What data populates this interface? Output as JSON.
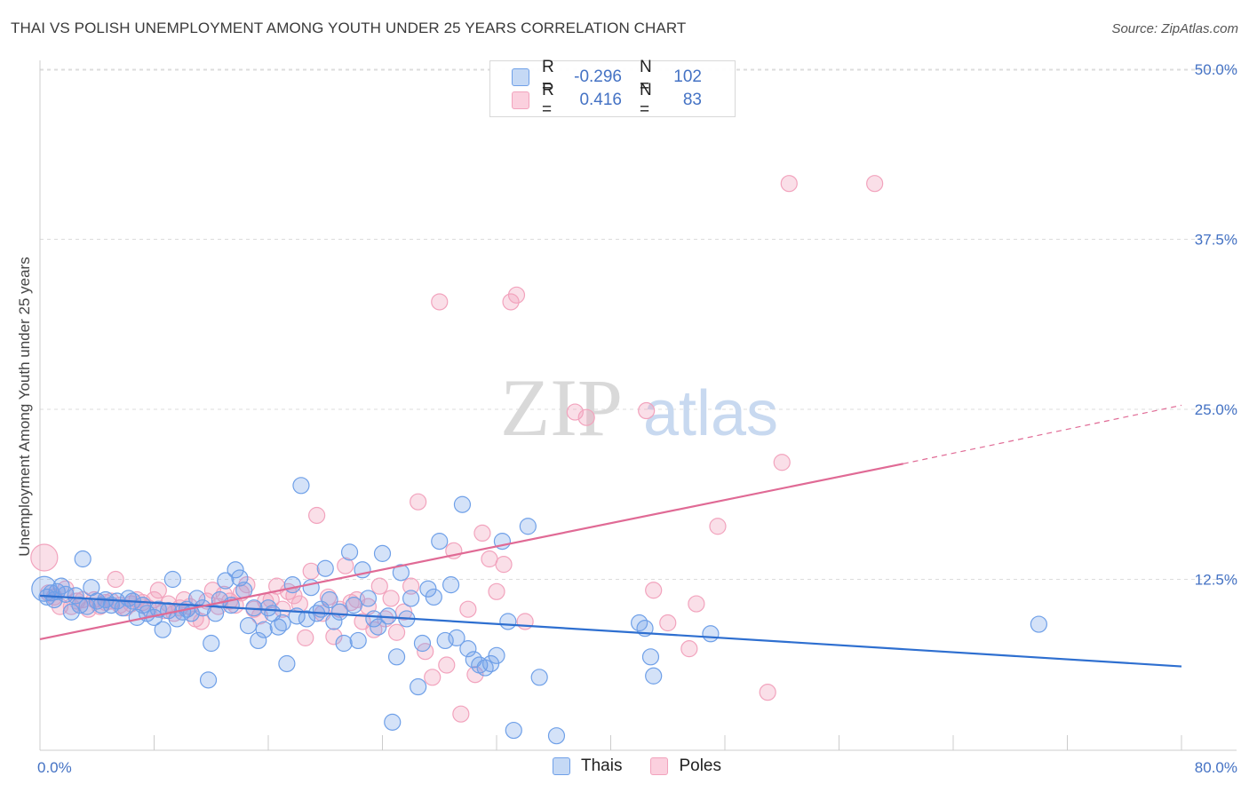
{
  "title": "THAI VS POLISH UNEMPLOYMENT AMONG YOUTH UNDER 25 YEARS CORRELATION CHART",
  "source": "Source: ZipAtlas.com",
  "watermark": {
    "zip": "ZIP",
    "atlas": "atlas"
  },
  "legend": {
    "r_label": "R =",
    "n_label": "N =",
    "thais": {
      "r": "-0.296",
      "n": "102"
    },
    "poles": {
      "r": "0.416",
      "n": "83"
    }
  },
  "chart_data": {
    "type": "scatter",
    "title": "THAI VS POLISH UNEMPLOYMENT AMONG YOUTH UNDER 25 YEARS CORRELATION CHART",
    "xlabel": "",
    "ylabel": "Unemployment Among Youth under 25 years",
    "xlim": [
      0,
      80
    ],
    "ylim": [
      0,
      50
    ],
    "x_tick_labels": [
      "0.0%",
      "80.0%"
    ],
    "y_ticks": [
      12.5,
      25.0,
      37.5,
      50.0
    ],
    "y_tick_labels": [
      "12.5%",
      "25.0%",
      "37.5%",
      "50.0%"
    ],
    "colors": {
      "thais": "#6fa0e8",
      "poles": "#f2a3bd",
      "thais_line": "#2e6fd0",
      "poles_line": "#e06a95"
    },
    "series": [
      {
        "name": "Thais",
        "trend": {
          "x0": 0,
          "y0": 11.3,
          "x1": 80,
          "y1": 6.1
        },
        "points": [
          [
            0.3,
            11.8
          ],
          [
            0.5,
            11.2
          ],
          [
            0.8,
            11.5
          ],
          [
            1.0,
            11.0
          ],
          [
            1.2,
            11.6
          ],
          [
            1.5,
            12.0
          ],
          [
            1.8,
            11.4
          ],
          [
            2.2,
            10.1
          ],
          [
            2.5,
            11.3
          ],
          [
            2.8,
            10.6
          ],
          [
            3.0,
            14.0
          ],
          [
            3.3,
            10.5
          ],
          [
            3.6,
            11.9
          ],
          [
            4.0,
            10.9
          ],
          [
            4.3,
            10.6
          ],
          [
            4.6,
            11.0
          ],
          [
            5.0,
            10.6
          ],
          [
            5.4,
            10.9
          ],
          [
            5.8,
            10.4
          ],
          [
            6.2,
            11.1
          ],
          [
            6.5,
            10.9
          ],
          [
            6.8,
            9.7
          ],
          [
            7.2,
            10.6
          ],
          [
            7.5,
            10.0
          ],
          [
            8.0,
            9.7
          ],
          [
            8.3,
            10.3
          ],
          [
            8.6,
            8.8
          ],
          [
            9.0,
            10.2
          ],
          [
            9.3,
            12.5
          ],
          [
            9.6,
            9.6
          ],
          [
            10.0,
            10.1
          ],
          [
            10.3,
            10.3
          ],
          [
            10.6,
            10.0
          ],
          [
            11.0,
            11.1
          ],
          [
            11.4,
            10.4
          ],
          [
            11.8,
            5.1
          ],
          [
            12.0,
            7.8
          ],
          [
            12.3,
            10.0
          ],
          [
            12.6,
            11.0
          ],
          [
            13.0,
            12.4
          ],
          [
            13.4,
            10.6
          ],
          [
            13.7,
            13.2
          ],
          [
            14.0,
            12.6
          ],
          [
            14.3,
            11.7
          ],
          [
            14.6,
            9.1
          ],
          [
            15.0,
            10.4
          ],
          [
            15.3,
            8.0
          ],
          [
            15.7,
            8.8
          ],
          [
            16.0,
            10.4
          ],
          [
            16.3,
            10.0
          ],
          [
            16.7,
            9.0
          ],
          [
            17.0,
            9.3
          ],
          [
            17.3,
            6.3
          ],
          [
            17.7,
            12.1
          ],
          [
            18.0,
            9.8
          ],
          [
            18.3,
            19.4
          ],
          [
            18.7,
            9.6
          ],
          [
            19.0,
            11.9
          ],
          [
            19.4,
            10.0
          ],
          [
            19.7,
            10.3
          ],
          [
            20.0,
            13.3
          ],
          [
            20.3,
            11.0
          ],
          [
            20.6,
            9.4
          ],
          [
            21.0,
            10.1
          ],
          [
            21.3,
            7.8
          ],
          [
            21.7,
            14.5
          ],
          [
            22.0,
            10.6
          ],
          [
            22.3,
            8.0
          ],
          [
            22.6,
            13.2
          ],
          [
            23.0,
            11.1
          ],
          [
            23.4,
            9.6
          ],
          [
            23.7,
            9.0
          ],
          [
            24.0,
            14.4
          ],
          [
            24.4,
            9.8
          ],
          [
            24.7,
            2.0
          ],
          [
            25.0,
            6.8
          ],
          [
            25.3,
            13.0
          ],
          [
            25.7,
            9.6
          ],
          [
            26.0,
            11.1
          ],
          [
            26.5,
            4.6
          ],
          [
            26.8,
            7.8
          ],
          [
            27.2,
            11.8
          ],
          [
            27.6,
            11.2
          ],
          [
            28.0,
            15.3
          ],
          [
            28.4,
            8.0
          ],
          [
            28.8,
            12.1
          ],
          [
            29.2,
            8.2
          ],
          [
            29.6,
            18.0
          ],
          [
            30.0,
            7.4
          ],
          [
            30.4,
            6.6
          ],
          [
            30.8,
            6.2
          ],
          [
            31.2,
            6.0
          ],
          [
            31.6,
            6.3
          ],
          [
            32.0,
            6.9
          ],
          [
            32.4,
            15.3
          ],
          [
            32.8,
            9.4
          ],
          [
            33.2,
            1.4
          ],
          [
            34.2,
            16.4
          ],
          [
            35.0,
            5.3
          ],
          [
            36.2,
            1.0
          ],
          [
            42.0,
            9.3
          ],
          [
            42.4,
            8.9
          ],
          [
            42.8,
            6.8
          ],
          [
            43.0,
            5.4
          ],
          [
            47.0,
            8.5
          ],
          [
            70.0,
            9.2
          ]
        ]
      },
      {
        "name": "Poles",
        "trend": {
          "x0": 0,
          "y0": 8.1,
          "x1": 60.5,
          "y1": 21.0,
          "dash_x1": 80,
          "dash_y1": 25.3
        },
        "points": [
          [
            0.3,
            14.1
          ],
          [
            0.6,
            11.5
          ],
          [
            1.0,
            11.2
          ],
          [
            1.4,
            10.5
          ],
          [
            1.8,
            11.8
          ],
          [
            2.2,
            10.5
          ],
          [
            2.6,
            10.9
          ],
          [
            3.0,
            11.0
          ],
          [
            3.4,
            10.3
          ],
          [
            3.8,
            11.0
          ],
          [
            4.2,
            10.5
          ],
          [
            4.6,
            10.8
          ],
          [
            5.0,
            10.9
          ],
          [
            5.3,
            12.5
          ],
          [
            5.6,
            10.6
          ],
          [
            6.0,
            10.4
          ],
          [
            6.4,
            10.7
          ],
          [
            6.8,
            11.0
          ],
          [
            7.2,
            10.8
          ],
          [
            7.6,
            10.4
          ],
          [
            8.0,
            11.0
          ],
          [
            8.3,
            11.7
          ],
          [
            8.7,
            10.2
          ],
          [
            9.0,
            10.7
          ],
          [
            9.4,
            10.0
          ],
          [
            9.8,
            10.4
          ],
          [
            10.1,
            11.0
          ],
          [
            10.5,
            10.5
          ],
          [
            10.9,
            9.6
          ],
          [
            11.3,
            9.4
          ],
          [
            11.7,
            10.9
          ],
          [
            12.1,
            11.7
          ],
          [
            12.5,
            10.5
          ],
          [
            12.9,
            11.4
          ],
          [
            13.3,
            10.9
          ],
          [
            13.7,
            10.6
          ],
          [
            14.1,
            11.5
          ],
          [
            14.5,
            12.1
          ],
          [
            15.0,
            10.3
          ],
          [
            15.4,
            9.8
          ],
          [
            15.8,
            10.9
          ],
          [
            16.2,
            11.0
          ],
          [
            16.6,
            12.0
          ],
          [
            17.0,
            10.3
          ],
          [
            17.4,
            11.6
          ],
          [
            17.8,
            11.3
          ],
          [
            18.2,
            10.7
          ],
          [
            18.6,
            8.2
          ],
          [
            19.0,
            13.1
          ],
          [
            19.4,
            17.2
          ],
          [
            19.8,
            10.0
          ],
          [
            20.2,
            11.2
          ],
          [
            20.6,
            8.3
          ],
          [
            21.0,
            10.3
          ],
          [
            21.4,
            13.5
          ],
          [
            21.8,
            10.8
          ],
          [
            22.2,
            11.0
          ],
          [
            22.6,
            9.4
          ],
          [
            23.0,
            10.5
          ],
          [
            23.4,
            8.8
          ],
          [
            23.8,
            12.0
          ],
          [
            24.2,
            9.6
          ],
          [
            24.6,
            11.1
          ],
          [
            25.0,
            8.6
          ],
          [
            25.5,
            10.1
          ],
          [
            26.0,
            12.0
          ],
          [
            26.5,
            18.2
          ],
          [
            27.0,
            7.2
          ],
          [
            27.5,
            5.3
          ],
          [
            28.0,
            32.9
          ],
          [
            28.5,
            6.2
          ],
          [
            29.0,
            14.6
          ],
          [
            29.5,
            2.6
          ],
          [
            30.0,
            10.3
          ],
          [
            30.5,
            5.5
          ],
          [
            31.0,
            15.9
          ],
          [
            31.5,
            14.0
          ],
          [
            32.0,
            11.6
          ],
          [
            32.5,
            13.6
          ],
          [
            33.0,
            32.9
          ],
          [
            33.4,
            33.4
          ],
          [
            34.0,
            9.4
          ],
          [
            37.5,
            24.8
          ],
          [
            38.3,
            24.4
          ],
          [
            42.5,
            24.9
          ],
          [
            43.0,
            11.7
          ],
          [
            44.0,
            9.3
          ],
          [
            45.5,
            7.4
          ],
          [
            46.0,
            10.7
          ],
          [
            47.5,
            16.4
          ],
          [
            51.0,
            4.2
          ],
          [
            52.0,
            21.1
          ],
          [
            52.5,
            41.6
          ],
          [
            58.5,
            41.6
          ]
        ]
      }
    ]
  }
}
